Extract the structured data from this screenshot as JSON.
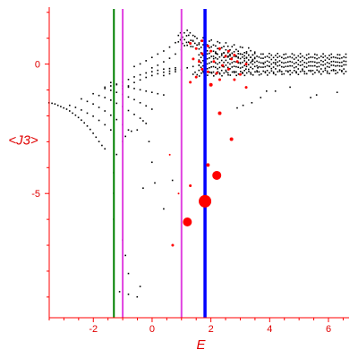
{
  "chart_data": {
    "type": "scatter",
    "title": "",
    "xlabel": "E",
    "ylabel": "<J3>",
    "xlim": [
      -3.5,
      6.7
    ],
    "ylim": [
      -9.8,
      2.2
    ],
    "x_ticks": [
      -2,
      0,
      2,
      4,
      6
    ],
    "x_tick_labels": [
      "-2",
      "0",
      "2",
      "4",
      "6"
    ],
    "y_ticks": [
      0,
      -5
    ],
    "y_tick_labels": [
      "0",
      "-5"
    ],
    "colors": {
      "axis": "#ff0000",
      "black_points": "#000000",
      "red_points": "#ff0000"
    },
    "vertical_lines": [
      {
        "x": -1.3,
        "color": "#008000"
      },
      {
        "x": -1.0,
        "color": "#e040e0"
      },
      {
        "x": 1.0,
        "color": "#e040e0"
      },
      {
        "x": 1.8,
        "color": "#0000ff"
      }
    ],
    "black_points": [
      [
        -3.5,
        -1.5
      ],
      [
        -3.4,
        -1.52
      ],
      [
        -3.3,
        -1.55
      ],
      [
        -3.2,
        -1.6
      ],
      [
        -3.1,
        -1.65
      ],
      [
        -3.0,
        -1.7
      ],
      [
        -2.9,
        -1.75
      ],
      [
        -2.8,
        -1.82
      ],
      [
        -2.7,
        -1.9
      ],
      [
        -2.6,
        -1.98
      ],
      [
        -2.5,
        -2.07
      ],
      [
        -2.4,
        -2.17
      ],
      [
        -2.3,
        -2.28
      ],
      [
        -2.2,
        -2.4
      ],
      [
        -2.1,
        -2.53
      ],
      [
        -2.0,
        -2.68
      ],
      [
        -1.9,
        -2.83
      ],
      [
        -1.8,
        -3.0
      ],
      [
        -1.7,
        -3.15
      ],
      [
        -1.6,
        -3.28
      ],
      [
        -2.8,
        -1.6
      ],
      [
        -2.6,
        -1.68
      ],
      [
        -2.4,
        -1.78
      ],
      [
        -2.2,
        -1.9
      ],
      [
        -2.0,
        -2.02
      ],
      [
        -1.8,
        -2.18
      ],
      [
        -1.6,
        -2.35
      ],
      [
        -1.4,
        -2.55
      ],
      [
        -2.4,
        -1.35
      ],
      [
        -2.2,
        -1.45
      ],
      [
        -2.0,
        -1.55
      ],
      [
        -1.8,
        -1.68
      ],
      [
        -1.6,
        -1.82
      ],
      [
        -1.4,
        -1.98
      ],
      [
        -1.2,
        -2.15
      ],
      [
        -1.0,
        -2.35
      ],
      [
        -0.8,
        -2.55
      ],
      [
        -2.0,
        -1.15
      ],
      [
        -1.8,
        -1.22
      ],
      [
        -1.6,
        -1.3
      ],
      [
        -1.4,
        -1.4
      ],
      [
        -1.2,
        -1.52
      ],
      [
        -1.0,
        -1.65
      ],
      [
        -0.8,
        -1.8
      ],
      [
        -0.6,
        -1.95
      ],
      [
        -0.4,
        -2.1
      ],
      [
        -0.2,
        -2.3
      ],
      [
        -1.6,
        -0.95
      ],
      [
        -1.4,
        -1.02
      ],
      [
        -1.2,
        -1.1
      ],
      [
        -1.0,
        -1.18
      ],
      [
        -0.8,
        -1.28
      ],
      [
        -0.6,
        -1.38
      ],
      [
        -0.4,
        -1.5
      ],
      [
        -0.2,
        -1.62
      ],
      [
        0.0,
        -1.75
      ],
      [
        -1.4,
        -0.72
      ],
      [
        -1.2,
        -0.78
      ],
      [
        -1.0,
        -0.85
      ],
      [
        -0.8,
        -0.9
      ],
      [
        -0.6,
        -0.95
      ],
      [
        -0.4,
        -1.0
      ],
      [
        -0.2,
        -1.05
      ],
      [
        0.0,
        -1.1
      ],
      [
        0.2,
        -1.15
      ],
      [
        0.4,
        -1.2
      ],
      [
        -1.6,
        -0.9
      ],
      [
        -1.4,
        -0.85
      ],
      [
        -1.2,
        -0.8
      ],
      [
        -1.0,
        -0.7
      ],
      [
        -0.8,
        -0.6
      ],
      [
        -0.6,
        -0.5
      ],
      [
        -0.4,
        -0.42
      ],
      [
        -0.2,
        -0.35
      ],
      [
        0.0,
        -0.3
      ],
      [
        0.2,
        -0.25
      ],
      [
        0.4,
        -0.2
      ],
      [
        0.6,
        -0.18
      ],
      [
        0.8,
        -0.15
      ],
      [
        -1.0,
        -0.95
      ],
      [
        -0.8,
        -0.85
      ],
      [
        -0.6,
        -0.72
      ],
      [
        -0.4,
        -0.62
      ],
      [
        -0.2,
        -0.52
      ],
      [
        0.0,
        -0.45
      ],
      [
        0.2,
        -0.38
      ],
      [
        0.4,
        -0.32
      ],
      [
        0.6,
        -0.28
      ],
      [
        0.8,
        -0.22
      ],
      [
        -0.6,
        -0.1
      ],
      [
        -0.4,
        0.0
      ],
      [
        -0.2,
        0.12
      ],
      [
        0.0,
        0.25
      ],
      [
        0.2,
        0.38
      ],
      [
        0.4,
        0.5
      ],
      [
        0.6,
        0.65
      ],
      [
        0.8,
        0.82
      ],
      [
        1.0,
        1.0
      ],
      [
        1.1,
        1.2
      ],
      [
        1.2,
        1.3
      ],
      [
        1.3,
        1.2
      ],
      [
        1.4,
        1.1
      ],
      [
        0.0,
        -0.15
      ],
      [
        0.2,
        -0.05
      ],
      [
        0.4,
        0.08
      ],
      [
        0.6,
        0.22
      ],
      [
        0.8,
        0.38
      ],
      [
        1.0,
        0.55
      ],
      [
        1.2,
        0.72
      ],
      [
        1.4,
        0.88
      ],
      [
        1.6,
        0.75
      ],
      [
        0.4,
        -0.45
      ],
      [
        0.6,
        -0.38
      ],
      [
        0.8,
        -0.3
      ],
      [
        1.0,
        -0.22
      ],
      [
        1.2,
        -0.15
      ],
      [
        1.4,
        -0.1
      ],
      [
        1.6,
        -0.05
      ],
      [
        -1.3,
        -4.2
      ],
      [
        -1.3,
        -5.0
      ],
      [
        -1.2,
        -3.5
      ],
      [
        -1.0,
        -3.0
      ],
      [
        -0.9,
        -2.8
      ],
      [
        -0.7,
        -2.6
      ],
      [
        -0.5,
        -2.55
      ],
      [
        -0.3,
        -2.2
      ],
      [
        -0.1,
        -3.0
      ],
      [
        0.0,
        -3.8
      ],
      [
        -0.3,
        -4.8
      ],
      [
        0.1,
        -4.6
      ],
      [
        0.4,
        -5.6
      ],
      [
        0.7,
        -4.5
      ],
      [
        -1.3,
        -6.0
      ],
      [
        -1.0,
        -6.8
      ],
      [
        -0.9,
        -7.4
      ],
      [
        -0.8,
        -8.1
      ],
      [
        -1.1,
        -8.8
      ],
      [
        -0.8,
        -8.9
      ],
      [
        -0.4,
        -8.6
      ],
      [
        -0.5,
        -9.0
      ],
      [
        2.9,
        -1.7
      ],
      [
        3.1,
        -1.6
      ],
      [
        3.4,
        -1.5
      ],
      [
        3.7,
        -1.3
      ],
      [
        3.9,
        -1.05
      ],
      [
        4.2,
        -1.05
      ],
      [
        4.7,
        -0.9
      ],
      [
        5.4,
        -1.3
      ],
      [
        5.6,
        -1.2
      ],
      [
        6.3,
        -1.1
      ],
      [
        2.1,
        0.2
      ],
      [
        2.2,
        0.4
      ],
      [
        2.4,
        -0.1
      ],
      [
        2.6,
        0.3
      ],
      [
        2.8,
        -0.3
      ],
      [
        3.0,
        0.05
      ],
      [
        3.2,
        -0.2
      ],
      [
        3.4,
        0.1
      ],
      [
        3.6,
        -0.15
      ],
      [
        3.8,
        0.0
      ],
      [
        4.0,
        -0.1
      ],
      [
        4.2,
        0.05
      ]
    ],
    "black_bands": [
      {
        "x_start": 1.6,
        "x_end": 6.6,
        "y_start": 0.35,
        "y_end": 0.3,
        "wave": 0.08
      },
      {
        "x_start": 1.6,
        "x_end": 6.6,
        "y_start": 0.15,
        "y_end": 0.15,
        "wave": 0.1
      },
      {
        "x_start": 1.6,
        "x_end": 6.6,
        "y_start": -0.05,
        "y_end": 0.0,
        "wave": 0.1
      },
      {
        "x_start": 1.6,
        "x_end": 6.6,
        "y_start": -0.25,
        "y_end": -0.15,
        "wave": 0.12
      },
      {
        "x_start": 1.4,
        "x_end": 6.6,
        "y_start": -0.4,
        "y_end": -0.3,
        "wave": 0.08
      },
      {
        "x_start": 0.9,
        "x_end": 3.5,
        "y_start": 1.1,
        "y_end": 0.45,
        "wave": 0.12
      },
      {
        "x_start": 0.9,
        "x_end": 3.5,
        "y_start": 0.85,
        "y_end": 0.2,
        "wave": 0.1
      }
    ],
    "red_points": [
      [
        1.8,
        -5.3,
        7
      ],
      [
        2.2,
        -4.3,
        5
      ],
      [
        1.2,
        -6.1,
        5
      ],
      [
        2.7,
        -2.9,
        2
      ],
      [
        2.3,
        -1.9,
        2
      ],
      [
        1.9,
        -3.9,
        2
      ],
      [
        0.7,
        -7.0,
        1.5
      ],
      [
        1.3,
        -4.7,
        1.5
      ],
      [
        0.6,
        -3.5,
        1
      ],
      [
        0.9,
        -5.0,
        1
      ],
      [
        2.0,
        -0.8,
        2
      ],
      [
        2.3,
        -0.6,
        1.5
      ],
      [
        1.3,
        -0.7,
        1.5
      ],
      [
        1.9,
        -0.3,
        1.5
      ],
      [
        1.5,
        -0.5,
        1.5
      ],
      [
        1.7,
        -0.2,
        1.5
      ],
      [
        1.3,
        0.8,
        1.5
      ],
      [
        1.5,
        0.6,
        1.5
      ],
      [
        1.7,
        0.9,
        1.5
      ],
      [
        2.0,
        0.5,
        1.5
      ],
      [
        2.3,
        0.6,
        1.5
      ],
      [
        2.5,
        0.3,
        1.5
      ],
      [
        2.7,
        0.2,
        1.5
      ],
      [
        2.9,
        0.1,
        1.5
      ],
      [
        3.2,
        0.0,
        1.5
      ],
      [
        2.1,
        0.1,
        1.5
      ],
      [
        2.4,
        -0.05,
        1.5
      ],
      [
        2.6,
        -0.2,
        1.5
      ],
      [
        3.0,
        -0.4,
        1.5
      ],
      [
        3.2,
        -0.9,
        1.5
      ],
      [
        2.8,
        -0.6,
        1.5
      ],
      [
        2.2,
        -0.35,
        1.5
      ],
      [
        1.4,
        0.2,
        1.5
      ],
      [
        1.7,
        0.4,
        1.5
      ],
      [
        1.9,
        0.7,
        1.5
      ],
      [
        2.6,
        0.5,
        1.5
      ],
      [
        1.6,
        0.1,
        1.5
      ],
      [
        2.8,
        0.35,
        1.5
      ]
    ]
  }
}
